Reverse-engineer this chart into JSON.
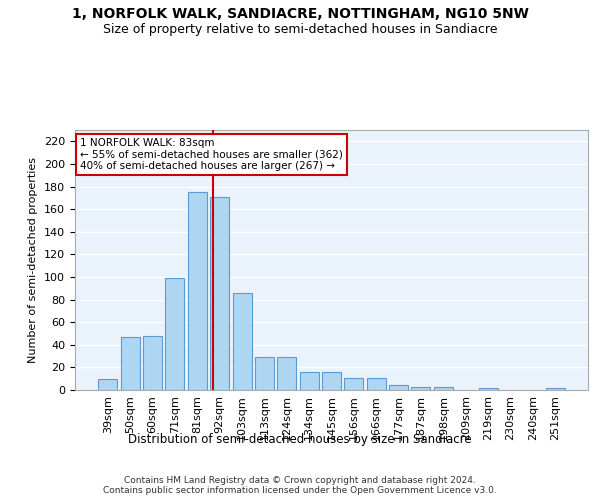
{
  "title": "1, NORFOLK WALK, SANDIACRE, NOTTINGHAM, NG10 5NW",
  "subtitle": "Size of property relative to semi-detached houses in Sandiacre",
  "xlabel": "Distribution of semi-detached houses by size in Sandiacre",
  "ylabel": "Number of semi-detached properties",
  "categories": [
    "39sqm",
    "50sqm",
    "60sqm",
    "71sqm",
    "81sqm",
    "92sqm",
    "103sqm",
    "113sqm",
    "124sqm",
    "134sqm",
    "145sqm",
    "156sqm",
    "166sqm",
    "177sqm",
    "187sqm",
    "198sqm",
    "209sqm",
    "219sqm",
    "230sqm",
    "240sqm",
    "251sqm"
  ],
  "values": [
    10,
    47,
    48,
    99,
    175,
    171,
    86,
    29,
    29,
    16,
    16,
    11,
    11,
    4,
    3,
    3,
    0,
    2,
    0,
    0,
    2
  ],
  "bar_color": "#AED6F1",
  "bar_edge_color": "#5B9BD5",
  "background_color": "#EAF2FB",
  "grid_color": "#FFFFFF",
  "red_line_x": 4.72,
  "annotation_text": "1 NORFOLK WALK: 83sqm\n← 55% of semi-detached houses are smaller (362)\n40% of semi-detached houses are larger (267) →",
  "annotation_box_color": "#FFFFFF",
  "annotation_border_color": "#CC0000",
  "footer": "Contains HM Land Registry data © Crown copyright and database right 2024.\nContains public sector information licensed under the Open Government Licence v3.0.",
  "ylim": [
    0,
    230
  ],
  "yticks": [
    0,
    20,
    40,
    60,
    80,
    100,
    120,
    140,
    160,
    180,
    200,
    220
  ],
  "title_fontsize": 10,
  "subtitle_fontsize": 9,
  "bar_fontsize": 8,
  "ylabel_fontsize": 8,
  "xlabel_fontsize": 8.5,
  "footer_fontsize": 6.5
}
